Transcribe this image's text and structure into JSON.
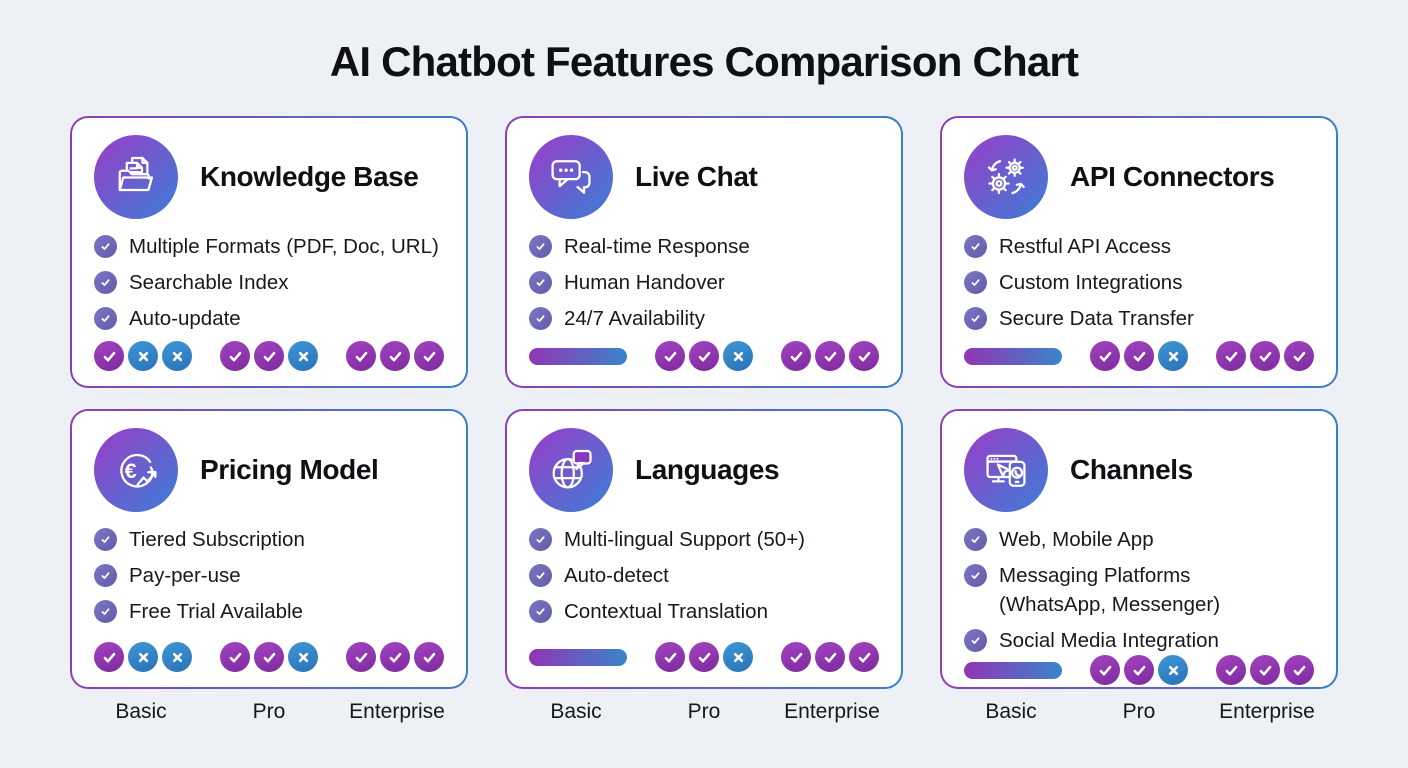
{
  "title": "AI Chatbot Features Comparison Chart",
  "tiers": [
    "Basic",
    "Pro",
    "Enterprise"
  ],
  "colors": {
    "page_background": "#edf1f5",
    "card_background": "#ffffff",
    "card_border_gradient": [
      "#8f3fb4",
      "#3a7ec6"
    ],
    "icon_circle_gradient": [
      "#9a3dc8",
      "#3b7ed6"
    ],
    "check_badge_purple": "#8e2fab",
    "x_badge_blue": "#3187cb",
    "feature_check_purple": "#6f69b5",
    "progress_bar_gradient": [
      "#9135b5",
      "#3a85c9"
    ],
    "title_text": "#0e1014",
    "body_text": "#17191d"
  },
  "cards": [
    {
      "title": "Knowledge Base",
      "icon": "folder-documents-icon",
      "features": [
        "Multiple Formats (PDF, Doc, URL)",
        "Searchable Index",
        "Auto-update"
      ],
      "ratings": [
        {
          "tier": "Basic",
          "type": "badges",
          "values": [
            "check",
            "x",
            "x"
          ]
        },
        {
          "tier": "Pro",
          "type": "badges",
          "values": [
            "check",
            "check",
            "x"
          ]
        },
        {
          "tier": "Enterprise",
          "type": "badges",
          "values": [
            "check",
            "check",
            "check"
          ]
        }
      ]
    },
    {
      "title": "Live Chat",
      "icon": "chat-bubbles-icon",
      "features": [
        "Real-time Response",
        "Human Handover",
        "24/7 Availability"
      ],
      "ratings": [
        {
          "tier": "Basic",
          "type": "bar"
        },
        {
          "tier": "Pro",
          "type": "badges",
          "values": [
            "check",
            "check",
            "x"
          ]
        },
        {
          "tier": "Enterprise",
          "type": "badges",
          "values": [
            "check",
            "check",
            "check"
          ]
        }
      ]
    },
    {
      "title": "API Connectors",
      "icon": "gears-sync-icon",
      "features": [
        "Restful API Access",
        "Custom Integrations",
        "Secure Data Transfer"
      ],
      "ratings": [
        {
          "tier": "Basic",
          "type": "bar"
        },
        {
          "tier": "Pro",
          "type": "badges",
          "values": [
            "check",
            "check",
            "x"
          ]
        },
        {
          "tier": "Enterprise",
          "type": "badges",
          "values": [
            "check",
            "check",
            "check"
          ]
        }
      ]
    },
    {
      "title": "Pricing Model",
      "icon": "euro-growth-icon",
      "features": [
        "Tiered Subscription",
        "Pay-per-use",
        "Free Trial Available"
      ],
      "ratings": [
        {
          "tier": "Basic",
          "type": "badges",
          "values": [
            "check",
            "x",
            "x"
          ]
        },
        {
          "tier": "Pro",
          "type": "badges",
          "values": [
            "check",
            "check",
            "x"
          ]
        },
        {
          "tier": "Enterprise",
          "type": "badges",
          "values": [
            "check",
            "check",
            "check"
          ]
        }
      ]
    },
    {
      "title": "Languages",
      "icon": "globe-speech-icon",
      "features": [
        "Multi-lingual Support (50+)",
        "Auto-detect",
        "Contextual Translation"
      ],
      "ratings": [
        {
          "tier": "Basic",
          "type": "bar"
        },
        {
          "tier": "Pro",
          "type": "badges",
          "values": [
            "check",
            "check",
            "x"
          ]
        },
        {
          "tier": "Enterprise",
          "type": "badges",
          "values": [
            "check",
            "check",
            "check"
          ]
        }
      ]
    },
    {
      "title": "Channels",
      "icon": "web-mobile-icon",
      "features": [
        "Web, Mobile App",
        "Messaging Platforms\n(WhatsApp, Messenger)",
        "Social Media Integration"
      ],
      "ratings": [
        {
          "tier": "Basic",
          "type": "bar"
        },
        {
          "tier": "Pro",
          "type": "badges",
          "values": [
            "check",
            "check",
            "x"
          ]
        },
        {
          "tier": "Enterprise",
          "type": "badges",
          "values": [
            "check",
            "check",
            "check"
          ]
        }
      ]
    }
  ]
}
